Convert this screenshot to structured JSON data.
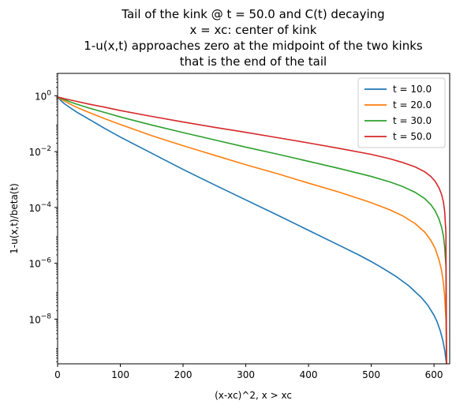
{
  "chart_data": {
    "type": "line",
    "title_lines": [
      "Tail of the kink @ t = 50.0 and C(t) decaying",
      "x = xc: center of kink",
      "1-u(x,t) approaches zero at the midpoint of the two kinks",
      "that is the end of the tail"
    ],
    "xlabel": "(x-xc)^2, x > xc",
    "ylabel": "1-u(x,t)/beta(t)",
    "xlim": [
      0,
      625
    ],
    "ylim_log10": [
      -9.6,
      0.8
    ],
    "yscale": "log",
    "x_ticks": [
      0,
      100,
      200,
      300,
      400,
      500,
      600
    ],
    "x_tick_labels": [
      "0",
      "100",
      "200",
      "300",
      "400",
      "500",
      "600"
    ],
    "y_ticks_log10": [
      0,
      -2,
      -4,
      -6,
      -8
    ],
    "y_tick_bases": [
      "10",
      "10",
      "10",
      "10",
      "10"
    ],
    "y_tick_exponents": [
      "0",
      "−2",
      "−4",
      "−6",
      "−8"
    ],
    "grid": false,
    "legend_position": "top-right",
    "x_end": 620,
    "series": [
      {
        "name": "t = 10.0",
        "color": "#1f77b4",
        "log10_x": [
          0,
          5,
          10,
          20,
          30,
          50,
          75,
          100,
          150,
          200,
          250,
          300,
          350,
          400,
          450,
          480,
          500,
          520,
          540,
          560,
          580,
          590,
          600,
          605,
          610,
          614,
          617,
          619,
          620
        ],
        "log10_y": [
          -0.05,
          -0.17,
          -0.27,
          -0.43,
          -0.58,
          -0.84,
          -1.17,
          -1.48,
          -2.06,
          -2.64,
          -3.19,
          -3.73,
          -4.27,
          -4.82,
          -5.37,
          -5.7,
          -5.94,
          -6.2,
          -6.48,
          -6.81,
          -7.23,
          -7.5,
          -7.86,
          -8.1,
          -8.42,
          -8.76,
          -9.1,
          -9.45,
          -9.6
        ]
      },
      {
        "name": "t = 20.0",
        "color": "#ff7f0e",
        "log10_x": [
          0,
          5,
          10,
          20,
          30,
          50,
          75,
          100,
          150,
          200,
          250,
          300,
          350,
          400,
          450,
          500,
          530,
          550,
          570,
          585,
          595,
          602,
          608,
          612,
          615,
          617,
          619,
          620
        ],
        "log10_y": [
          -0.05,
          -0.12,
          -0.18,
          -0.3,
          -0.41,
          -0.6,
          -0.82,
          -1.03,
          -1.43,
          -1.79,
          -2.13,
          -2.47,
          -2.79,
          -3.13,
          -3.46,
          -3.83,
          -4.09,
          -4.3,
          -4.58,
          -4.88,
          -5.18,
          -5.48,
          -5.88,
          -6.25,
          -6.7,
          -7.2,
          -8.0,
          -9.6
        ]
      },
      {
        "name": "t = 30.0",
        "color": "#2ca02c",
        "log10_x": [
          0,
          5,
          10,
          20,
          30,
          50,
          75,
          100,
          150,
          200,
          250,
          300,
          350,
          400,
          450,
          500,
          530,
          550,
          570,
          585,
          595,
          602,
          608,
          612,
          615,
          617,
          619,
          620
        ],
        "log10_y": [
          -0.05,
          -0.09,
          -0.13,
          -0.22,
          -0.3,
          -0.44,
          -0.6,
          -0.76,
          -1.05,
          -1.32,
          -1.58,
          -1.84,
          -2.09,
          -2.35,
          -2.61,
          -2.89,
          -3.09,
          -3.25,
          -3.46,
          -3.68,
          -3.9,
          -4.13,
          -4.42,
          -4.7,
          -5.02,
          -5.42,
          -6.1,
          -9.6
        ]
      },
      {
        "name": "t = 50.0",
        "color": "#d62728",
        "log10_x": [
          0,
          5,
          10,
          20,
          30,
          50,
          75,
          100,
          150,
          200,
          250,
          300,
          350,
          400,
          450,
          500,
          530,
          550,
          570,
          585,
          595,
          602,
          608,
          612,
          615,
          617,
          619,
          620
        ],
        "log10_y": [
          -0.05,
          -0.07,
          -0.1,
          -0.15,
          -0.2,
          -0.3,
          -0.41,
          -0.53,
          -0.74,
          -0.94,
          -1.13,
          -1.31,
          -1.5,
          -1.69,
          -1.89,
          -2.1,
          -2.26,
          -2.39,
          -2.55,
          -2.72,
          -2.89,
          -3.07,
          -3.3,
          -3.53,
          -3.8,
          -4.15,
          -4.9,
          -9.6
        ]
      }
    ]
  }
}
